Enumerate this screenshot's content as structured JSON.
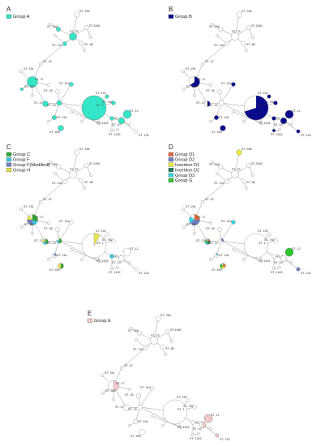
{
  "panels": [
    {
      "letter": "A",
      "legend": [
        {
          "label": "Group A",
          "color": "#33e6c8"
        }
      ]
    },
    {
      "letter": "B",
      "legend": [
        {
          "label": "Group B",
          "color": "#0a0a8c"
        }
      ]
    },
    {
      "letter": "C",
      "legend": [
        {
          "label": "Group C",
          "color": "#2ea82e"
        },
        {
          "label": "Group F",
          "color": "#33c9e6"
        },
        {
          "label": "Group F(Modified)",
          "color": "#6f7fc0"
        },
        {
          "label": "Group H",
          "color": "#e6e64d"
        }
      ]
    },
    {
      "letter": "D",
      "legend": [
        {
          "label": "Group D1",
          "color": "#e0673a"
        },
        {
          "label": "Group D2",
          "color": "#6f7fc0"
        },
        {
          "label": "Insertion D1",
          "color": "#eded3a"
        },
        {
          "label": "Insertion D2",
          "color": "#1f7a5a"
        },
        {
          "label": "Group D3",
          "color": "#33d6e6"
        },
        {
          "label": "Group G",
          "color": "#2ec42e"
        }
      ]
    },
    {
      "letter": "E",
      "legend": [
        {
          "label": "Group E",
          "color": "#f2c8c8"
        }
      ]
    }
  ],
  "node_labels": [
    "ST- 496",
    "ST- 249",
    "ST-1060",
    "ST- 23",
    "ST- 144",
    "ST- 88",
    "ST- 22",
    "ST- 291",
    "ST- 17",
    "ST- 307",
    "ST- 314",
    "ST- 28",
    "ST- 27",
    "ST- 19",
    "ST- 1",
    "ST- 153",
    "ST- 760",
    "ST- 164",
    "ST- 1401",
    "ST- 12",
    "ST- 6",
    "ST- 10",
    "ST- 459",
    "ST- 1402",
    "ST- 130"
  ]
}
